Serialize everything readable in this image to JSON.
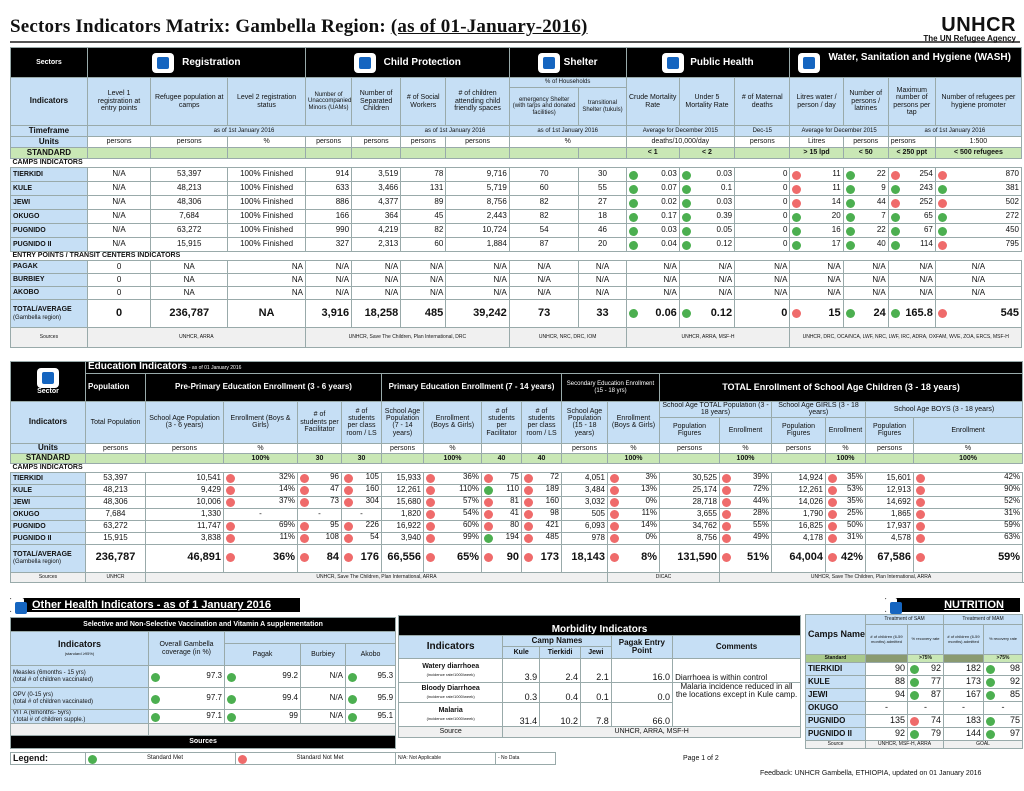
{
  "title": {
    "main": "Sectors Indicators Matrix: Gambella Region",
    "date": "(as of 01-January-2016)"
  },
  "logo": {
    "brand": "UNHCR",
    "tagline": "The UN Refugee Agency"
  },
  "sectors_table": {
    "sectors_label": "Sectors",
    "sectors": [
      "Registration",
      "Child Protection",
      "Shelter",
      "Public Health",
      "Water, Sanitation and Hygiene (WASH)"
    ],
    "indicators_label": "Indicators",
    "households_label": "% of Households",
    "columns": [
      "Level 1 registration at entry points",
      "Refugee population at camps",
      "Level 2 registration status",
      "Number of Unaccompanied Minors (UAMs)",
      "Number of Separated Children",
      "# of Social Workers",
      "# of children attending child friendly spaces",
      "emergency Shelter (with tarps and donated facilities)",
      "transitional Shelter (tukuls)",
      "Crude Mortality Rate",
      "Under 5 Mortality Rate",
      "# of Maternal deaths",
      "Litres water / person / day",
      "Number of persons / latrines",
      "Maximum number of persons per tap",
      "Number of refugees per hygiene promoter"
    ],
    "timeframe_label": "Timeframe",
    "timeframes": [
      "as of 1st January 2016",
      "as of 1st January 2016",
      "as of 1st January 2016",
      "Average for December 2015",
      "Dec-15",
      "Average for December 2015",
      "as of 1st January 2016"
    ],
    "units_label": "Units",
    "units": [
      "persons",
      "persons",
      "%",
      "persons",
      "persons",
      "persons",
      "persons",
      "%",
      "",
      "deaths/10,000/day",
      "",
      "persons",
      "Litres",
      "persons",
      "persons",
      "1:500"
    ],
    "standard_label": "STANDARD",
    "standards": [
      "",
      "",
      "",
      "",
      "",
      "",
      "",
      "",
      "",
      "< 1",
      "< 2",
      "",
      "> 15 lpd",
      "< 50",
      "< 250 ppt",
      "< 500 refugees"
    ],
    "camps_label": "CAMPS INDICATORS",
    "camps": [
      {
        "name": "TIERKIDI",
        "v": [
          "N/A",
          "53,397",
          "100% Finished",
          "914",
          "3,519",
          "78",
          "9,716",
          "70",
          "30",
          "0.03",
          "0.03",
          "0",
          "11",
          "22",
          "254",
          "870"
        ],
        "s": [
          "ok",
          "ok",
          "no",
          "ok",
          "no",
          "no"
        ]
      },
      {
        "name": "KULE",
        "v": [
          "N/A",
          "48,213",
          "100% Finished",
          "633",
          "3,466",
          "131",
          "5,719",
          "60",
          "55",
          "0.07",
          "0.1",
          "0",
          "11",
          "9",
          "243",
          "381"
        ],
        "s": [
          "ok",
          "ok",
          "no",
          "ok",
          "ok",
          "ok"
        ]
      },
      {
        "name": "JEWI",
        "v": [
          "N/A",
          "48,306",
          "100% Finished",
          "886",
          "4,377",
          "89",
          "8,756",
          "82",
          "27",
          "0.02",
          "0.03",
          "0",
          "14",
          "44",
          "252",
          "502"
        ],
        "s": [
          "ok",
          "ok",
          "no",
          "ok",
          "no",
          "no"
        ]
      },
      {
        "name": "OKUGO",
        "v": [
          "N/A",
          "7,684",
          "100% Finished",
          "166",
          "364",
          "45",
          "2,443",
          "82",
          "18",
          "0.17",
          "0.39",
          "0",
          "20",
          "7",
          "65",
          "272"
        ],
        "s": [
          "ok",
          "ok",
          "ok",
          "ok",
          "ok",
          "ok"
        ]
      },
      {
        "name": "PUGNIDO",
        "v": [
          "N/A",
          "63,272",
          "100% Finished",
          "990",
          "4,219",
          "82",
          "10,724",
          "54",
          "46",
          "0.03",
          "0.05",
          "0",
          "16",
          "22",
          "67",
          "450"
        ],
        "s": [
          "ok",
          "ok",
          "ok",
          "ok",
          "ok",
          "ok"
        ]
      },
      {
        "name": "PUGNIDO II",
        "v": [
          "N/A",
          "15,915",
          "100% Finished",
          "327",
          "2,313",
          "60",
          "1,884",
          "87",
          "20",
          "0.04",
          "0.12",
          "0",
          "17",
          "40",
          "114",
          "795"
        ],
        "s": [
          "ok",
          "ok",
          "ok",
          "ok",
          "ok",
          "no"
        ]
      }
    ],
    "entry_label": "ENTRY POINTS / TRANSIT CENTERS INDICATORS",
    "entries": [
      {
        "name": "PAGAK",
        "v": [
          "0",
          "NA",
          "NA",
          "N/A",
          "N/A",
          "N/A",
          "N/A",
          "N/A",
          "N/A",
          "N/A",
          "N/A",
          "N/A",
          "N/A",
          "N/A",
          "N/A",
          "N/A"
        ]
      },
      {
        "name": "BURBIEY",
        "v": [
          "0",
          "NA",
          "NA",
          "N/A",
          "N/A",
          "N/A",
          "N/A",
          "N/A",
          "N/A",
          "N/A",
          "N/A",
          "N/A",
          "N/A",
          "N/A",
          "N/A",
          "N/A"
        ]
      },
      {
        "name": "AKOBO",
        "v": [
          "0",
          "NA",
          "NA",
          "N/A",
          "N/A",
          "N/A",
          "N/A",
          "N/A",
          "N/A",
          "N/A",
          "N/A",
          "N/A",
          "N/A",
          "N/A",
          "N/A",
          "N/A"
        ]
      }
    ],
    "total": {
      "name1": "TOTAL/AVERAGE",
      "name2": "(Gambella region)",
      "v": [
        "0",
        "236,787",
        "NA",
        "3,916",
        "18,258",
        "485",
        "39,242",
        "73",
        "33",
        "0.06",
        "0.12",
        "0",
        "15",
        "24",
        "165.8",
        "545"
      ],
      "s": [
        "ok",
        "ok",
        "no",
        "ok",
        "ok",
        "no"
      ]
    },
    "sources_label": "Sources",
    "sources": [
      "UNHCR, ARRA",
      "UNHCR, Save The Children, Plan International, DRC",
      "UNHCR, NRC, DRC, IOM",
      "UNHCR, ARRA, MSF-H",
      "UNHCR, DRC, OCA/NCA, LWF, NRC, LWF, IRC, ADRA, OXFAM, WVE, ZOA, ERCS, MSF-H"
    ]
  },
  "education": {
    "sector_label": "Sector",
    "title": "Education Indicators",
    "subtitle": "- as of 01 January 2016",
    "population_label": "Population",
    "groups": [
      "Pre-Primary Education Enrollment (3 - 6 years)",
      "Primary Education Enrollment (7 - 14 years)",
      "Secondary Education Enrollment (15 - 18 yrs)",
      "TOTAL Enrollment of School Age Children (3 - 18 years)"
    ],
    "subgroups": [
      "School Age TOTAL Population (3 - 18 years)",
      "School Age GIRLS (3 - 18 years)",
      "School Age BOYS (3 - 18 years)"
    ],
    "indicators_label": "Indicators",
    "columns": [
      "Total Population",
      "School Age Population (3 - 6 years)",
      "Enrollment (Boys & Girls)",
      "# of students per Facilitator",
      "# of students per class room / LS",
      "School Age Population (7 - 14 years)",
      "Enrollment (Boys & Girls)",
      "# of students per Facilitator",
      "# of students per class room / LS",
      "School Age Population (15 - 18 years)",
      "Enrollment (Boys & Girls)",
      "Population Figures",
      "Enrollment",
      "Population Figures",
      "Enrollment",
      "Population Figures",
      "Enrollment"
    ],
    "units_label": "Units",
    "units": [
      "persons",
      "persons",
      "%",
      "",
      "",
      "persons",
      "%",
      "",
      "",
      "persons",
      "%",
      "persons",
      "%",
      "persons",
      "%",
      "persons",
      "%"
    ],
    "standard_label": "STANDARD",
    "standards": [
      "",
      "",
      "100%",
      "30",
      "30",
      "",
      "100%",
      "40",
      "40",
      "",
      "100%",
      "",
      "100%",
      "",
      "100%",
      "",
      "100%"
    ],
    "camps_label": "CAMPS INDICATORS",
    "camps": [
      {
        "name": "TIERKIDI",
        "v": [
          "53,397",
          "10,541",
          "32%",
          "96",
          "105",
          "15,933",
          "36%",
          "75",
          "72",
          "4,051",
          "3%",
          "30,525",
          "39%",
          "14,924",
          "35%",
          "15,601",
          "42%"
        ]
      },
      {
        "name": "KULE",
        "v": [
          "48,213",
          "9,429",
          "14%",
          "47",
          "160",
          "12,261",
          "110%",
          "110",
          "189",
          "3,484",
          "13%",
          "25,174",
          "72%",
          "12,261",
          "53%",
          "12,913",
          "90%"
        ]
      },
      {
        "name": "JEWI",
        "v": [
          "48,306",
          "10,006",
          "37%",
          "73",
          "304",
          "15,680",
          "57%",
          "81",
          "160",
          "3,032",
          "0%",
          "28,718",
          "44%",
          "14,026",
          "35%",
          "14,692",
          "52%"
        ]
      },
      {
        "name": "OKUGO",
        "v": [
          "7,684",
          "1,330",
          "-",
          "-",
          "-",
          "1,820",
          "54%",
          "41",
          "98",
          "505",
          "11%",
          "3,655",
          "28%",
          "1,790",
          "25%",
          "1,865",
          "31%"
        ]
      },
      {
        "name": "PUGNIDO",
        "v": [
          "63,272",
          "11,747",
          "69%",
          "95",
          "226",
          "16,922",
          "60%",
          "80",
          "421",
          "6,093",
          "14%",
          "34,762",
          "55%",
          "16,825",
          "50%",
          "17,937",
          "59%"
        ]
      },
      {
        "name": "PUGNIDO II",
        "v": [
          "15,915",
          "3,838",
          "11%",
          "108",
          "54",
          "3,940",
          "99%",
          "194",
          "485",
          "978",
          "0%",
          "8,756",
          "49%",
          "4,178",
          "31%",
          "4,578",
          "63%"
        ]
      }
    ],
    "total": {
      "name1": "TOTAL/AVERAGE",
      "name2": "(Gambella region)",
      "v": [
        "236,787",
        "46,891",
        "36%",
        "84",
        "176",
        "66,556",
        "65%",
        "90",
        "173",
        "18,143",
        "8%",
        "131,590",
        "51%",
        "64,004",
        "42%",
        "67,586",
        "59%"
      ]
    },
    "sources_label": "Sources",
    "sources": [
      "UNHCR",
      "UNHCR, Save The Children, Plan International, ARRA",
      "DICAC",
      "UNHCR, Save The Children, Plan International, ARRA"
    ]
  },
  "other_health": {
    "bar_title": "Other Health Indicators - as of 1 January 2016",
    "vaccination": {
      "title": "Selective and Non-Selective Vaccination and Vitamin A supplementation",
      "indicators_label": "Indicators",
      "indicators_sub": "(standard ≥95%)",
      "overall_label": "Overall Gambella coverage (in %)",
      "locations": [
        "Pagak",
        "Burbiey",
        "Akobo"
      ],
      "rows": [
        {
          "l1": "Measles (6months - 15 yrs)",
          "l2": "(total # of children vaccinated)",
          "v": [
            "97.3",
            "99.2",
            "N/A",
            "95.3"
          ]
        },
        {
          "l1": "OPV (0-15 yrs)",
          "l2": "(total # of children vaccinated)",
          "v": [
            "97.7",
            "99.4",
            "N/A",
            "95.9"
          ]
        },
        {
          "l1": "VIT A (6months- 5yrs)",
          "l2": "( total # of children supple.)",
          "v": [
            "97.1",
            "99",
            "N/A",
            "95.1"
          ]
        }
      ],
      "sources_label": "Sources"
    },
    "morbidity": {
      "title": "Morbidity Indicators",
      "indicators_label": "Indicators",
      "camp_names_label": "Camp Names",
      "camps": [
        "Kule",
        "Tierkidi",
        "Jewi"
      ],
      "entry_label": "Pagak Entry Point",
      "comments_label": "Comments",
      "rows": [
        {
          "l1": "Watery diarrhoea",
          "l2": "(incidence rate/1000/week)",
          "v": [
            "3.9",
            "2.4",
            "2.1",
            "16.0"
          ]
        },
        {
          "l1": "Bloody Diarrhoea",
          "l2": "(incidence rate/1000/week)",
          "v": [
            "0.3",
            "0.4",
            "0.1",
            "0.0"
          ]
        },
        {
          "l1": "Malaria",
          "l2": "(incidence rate/1000/week)",
          "v": [
            "31.4",
            "10.2",
            "7.8",
            "66.0"
          ]
        }
      ],
      "comments": [
        "Diarrhoea is within control",
        "Malaria incidence reduced in all the locations except in Kule camp."
      ],
      "source_label": "Source",
      "source": "UNHCR, ARRA, MSF-H"
    }
  },
  "nutrition": {
    "bar_title": "NUTRITION",
    "camps_label": "Camps Names",
    "groups": [
      "Treatment of SAM",
      "Treatment of MAM"
    ],
    "columns": [
      "# of children (6-59 months) admitted",
      "% recovery rate",
      "# of children (6-59 months) admitted",
      "% recovery rate"
    ],
    "standard_label": "Standard",
    "standards": [
      "",
      ">75%",
      "",
      ">75%"
    ],
    "rows": [
      {
        "name": "TIERKIDI",
        "v": [
          "90",
          "92",
          "182",
          "98"
        ],
        "s": [
          "ok",
          "ok"
        ]
      },
      {
        "name": "KULE",
        "v": [
          "88",
          "77",
          "173",
          "92"
        ],
        "s": [
          "ok",
          "ok"
        ]
      },
      {
        "name": "JEWI",
        "v": [
          "94",
          "87",
          "167",
          "85"
        ],
        "s": [
          "ok",
          "ok"
        ]
      },
      {
        "name": "OKUGO",
        "v": [
          "-",
          "-",
          "-",
          "-"
        ],
        "s": [
          "",
          ""
        ]
      },
      {
        "name": "PUGNIDO",
        "v": [
          "135",
          "74",
          "183",
          "75"
        ],
        "s": [
          "no",
          "ok"
        ]
      },
      {
        "name": "PUGNIDO II",
        "v": [
          "92",
          "79",
          "144",
          "97"
        ],
        "s": [
          "ok",
          "ok"
        ]
      }
    ],
    "source_label": "Source",
    "source": "UNHCR, MSF-H, ARRA",
    "source2": "GOAL"
  },
  "legend": {
    "label": "Legend:",
    "met": "Standard Met",
    "not_met": "Standard Not Met",
    "na": "N/A: Not Applicable",
    "nodata": "- No Data"
  },
  "footer": {
    "page": "Page 1 of 2",
    "feedback": "Feedback: UNHCR Gambella, ETHIOPIA, updated on 01 January 2016"
  }
}
